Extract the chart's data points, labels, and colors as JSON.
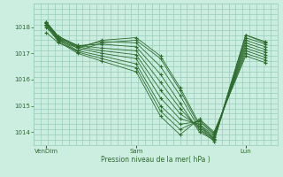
{
  "background_color": "#cceee0",
  "grid_color": "#99ccbb",
  "line_color": "#2d6b2d",
  "xlabel": "Pression niveau de la mer( hPa )",
  "ylim": [
    1013.5,
    1018.9
  ],
  "yticks": [
    1014,
    1015,
    1016,
    1017,
    1018
  ],
  "xtick_labels": [
    "VenDim",
    "Sam",
    "Lun"
  ],
  "xtick_positions": [
    0.05,
    0.42,
    0.87
  ],
  "lines": [
    {
      "x": [
        0.05,
        0.1,
        0.18,
        0.28,
        0.42,
        0.52,
        0.6,
        0.68,
        0.74,
        0.87,
        0.95
      ],
      "y": [
        1017.8,
        1017.4,
        1017.1,
        1017.4,
        1017.5,
        1016.8,
        1015.6,
        1014.2,
        1013.7,
        1017.7,
        1017.4
      ]
    },
    {
      "x": [
        0.05,
        0.1,
        0.18,
        0.28,
        0.42,
        0.52,
        0.6,
        0.68,
        0.74,
        0.87,
        0.95
      ],
      "y": [
        1018.0,
        1017.5,
        1017.2,
        1017.5,
        1017.6,
        1016.9,
        1015.7,
        1014.3,
        1013.75,
        1017.7,
        1017.45
      ]
    },
    {
      "x": [
        0.05,
        0.1,
        0.18,
        0.28,
        0.42,
        0.52,
        0.6,
        0.68,
        0.74,
        0.87,
        0.95
      ],
      "y": [
        1018.1,
        1017.55,
        1017.25,
        1017.45,
        1017.4,
        1016.5,
        1015.4,
        1014.1,
        1013.65,
        1017.6,
        1017.35
      ]
    },
    {
      "x": [
        0.05,
        0.1,
        0.18,
        0.28,
        0.42,
        0.52,
        0.6,
        0.68,
        0.74,
        0.87,
        0.95
      ],
      "y": [
        1018.15,
        1017.6,
        1017.3,
        1017.35,
        1017.25,
        1016.2,
        1015.1,
        1014.0,
        1013.7,
        1017.5,
        1017.25
      ]
    },
    {
      "x": [
        0.05,
        0.1,
        0.18,
        0.28,
        0.42,
        0.52,
        0.6,
        0.68,
        0.74,
        0.87,
        0.95
      ],
      "y": [
        1018.2,
        1017.65,
        1017.3,
        1017.2,
        1017.1,
        1015.9,
        1014.9,
        1014.1,
        1013.75,
        1017.4,
        1017.15
      ]
    },
    {
      "x": [
        0.05,
        0.1,
        0.18,
        0.28,
        0.42,
        0.52,
        0.6,
        0.68,
        0.74,
        0.87,
        0.95
      ],
      "y": [
        1018.2,
        1017.65,
        1017.25,
        1017.1,
        1016.95,
        1015.6,
        1014.7,
        1014.2,
        1013.8,
        1017.3,
        1017.05
      ]
    },
    {
      "x": [
        0.05,
        0.1,
        0.18,
        0.28,
        0.42,
        0.52,
        0.6,
        0.68,
        0.74,
        0.87,
        0.95
      ],
      "y": [
        1018.2,
        1017.6,
        1017.2,
        1017.0,
        1016.8,
        1015.3,
        1014.5,
        1014.3,
        1013.85,
        1017.2,
        1016.95
      ]
    },
    {
      "x": [
        0.05,
        0.1,
        0.18,
        0.28,
        0.42,
        0.52,
        0.6,
        0.68,
        0.74,
        0.87,
        0.95
      ],
      "y": [
        1018.15,
        1017.55,
        1017.1,
        1016.9,
        1016.6,
        1015.0,
        1014.3,
        1014.4,
        1013.9,
        1017.1,
        1016.85
      ]
    },
    {
      "x": [
        0.05,
        0.1,
        0.18,
        0.28,
        0.42,
        0.52,
        0.6,
        0.68,
        0.74,
        0.87,
        0.95
      ],
      "y": [
        1018.1,
        1017.5,
        1017.05,
        1016.8,
        1016.45,
        1014.8,
        1014.1,
        1014.45,
        1013.95,
        1017.0,
        1016.75
      ]
    },
    {
      "x": [
        0.05,
        0.1,
        0.18,
        0.28,
        0.42,
        0.52,
        0.6,
        0.68,
        0.74,
        0.87,
        0.95
      ],
      "y": [
        1018.05,
        1017.45,
        1017.0,
        1016.7,
        1016.3,
        1014.6,
        1013.9,
        1014.5,
        1014.0,
        1016.9,
        1016.65
      ]
    }
  ]
}
